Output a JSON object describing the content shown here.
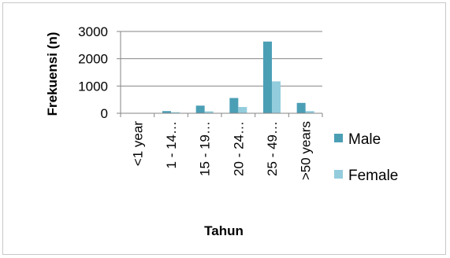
{
  "chart_data": {
    "type": "bar",
    "categories": [
      "<1 year",
      "1 - 14…",
      "15 - 19…",
      "20 - 24…",
      "25 - 49…",
      ">50 years"
    ],
    "series": [
      {
        "name": "Male",
        "values": [
          10,
          80,
          280,
          560,
          2630,
          380
        ]
      },
      {
        "name": "Female",
        "values": [
          5,
          40,
          70,
          230,
          1170,
          80
        ]
      }
    ],
    "xlabel": "Tahun",
    "ylabel": "Frekuensi (n)",
    "ylim": [
      0,
      3000
    ],
    "yticks": [
      0,
      1000,
      2000,
      3000
    ],
    "grid": true,
    "legend_position": "right",
    "colors": {
      "Male": "#4b9fb5",
      "Female": "#93cddd",
      "grid": "#868686",
      "axis": "#868686"
    }
  }
}
